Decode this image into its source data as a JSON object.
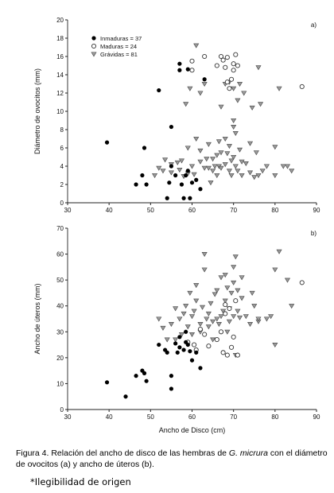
{
  "chart_data": [
    {
      "type": "scatter",
      "panel_label": "a)",
      "xlabel": "",
      "ylabel": "Diámetro de ovocitos (mm)",
      "xlim": [
        30,
        90
      ],
      "ylim": [
        0,
        20
      ],
      "xticks": [
        30,
        40,
        50,
        60,
        70,
        80,
        90
      ],
      "yticks": [
        0,
        2,
        4,
        6,
        8,
        10,
        12,
        14,
        16,
        18,
        20
      ],
      "legend_position": "top-left",
      "series": [
        {
          "name": "Inmaduras = 37",
          "marker": "filled-circle",
          "points": [
            [
              39.5,
              6.6
            ],
            [
              46.5,
              2.0
            ],
            [
              48,
              3.0
            ],
            [
              48.5,
              6.0
            ],
            [
              49,
              2.0
            ],
            [
              52,
              12.3
            ],
            [
              54,
              0.5
            ],
            [
              54.5,
              2.2
            ],
            [
              55,
              8.3
            ],
            [
              55,
              4.0
            ],
            [
              56,
              3.0
            ],
            [
              57,
              15.2
            ],
            [
              57,
              14.5
            ],
            [
              57.5,
              2.0
            ],
            [
              58,
              0.5
            ],
            [
              58.5,
              3.0
            ],
            [
              59,
              3.5
            ],
            [
              59,
              14.6
            ],
            [
              59.5,
              0.5
            ],
            [
              60,
              2.2
            ],
            [
              61,
              2.5
            ],
            [
              62,
              1.5
            ],
            [
              63,
              13.5
            ]
          ]
        },
        {
          "name": "Maduras = 24",
          "marker": "open-circle",
          "points": [
            [
              60,
              14.5
            ],
            [
              60,
              15.5
            ],
            [
              63,
              16.0
            ],
            [
              66,
              15.0
            ],
            [
              67,
              16.0
            ],
            [
              67.5,
              15.6
            ],
            [
              68,
              14.8
            ],
            [
              68.5,
              13.2
            ],
            [
              68.5,
              15.9
            ],
            [
              69,
              12.5
            ],
            [
              69.5,
              13.5
            ],
            [
              70,
              14.5
            ],
            [
              70,
              15.2
            ],
            [
              70.5,
              16.2
            ],
            [
              71,
              15.0
            ],
            [
              86.5,
              12.7
            ]
          ]
        },
        {
          "name": "Grávidas = 81",
          "marker": "triangle-down",
          "points": [
            [
              51,
              3.0
            ],
            [
              52,
              3.8
            ],
            [
              53,
              3.5
            ],
            [
              53.5,
              4.7
            ],
            [
              55,
              4.2
            ],
            [
              55,
              3.3
            ],
            [
              56.5,
              4.4
            ],
            [
              57,
              3.6
            ],
            [
              57.5,
              4.6
            ],
            [
              58,
              2.9
            ],
            [
              58.5,
              10.8
            ],
            [
              59,
              6.0
            ],
            [
              59,
              3.2
            ],
            [
              59.5,
              12.5
            ],
            [
              60,
              4.0
            ],
            [
              60.5,
              3.1
            ],
            [
              61,
              17.2
            ],
            [
              61,
              7.0
            ],
            [
              62,
              4.5
            ],
            [
              62,
              5.7
            ],
            [
              62,
              12.0
            ],
            [
              63,
              3.8
            ],
            [
              63,
              13.0
            ],
            [
              63.5,
              4.8
            ],
            [
              64,
              3.8
            ],
            [
              64,
              6.4
            ],
            [
              64.5,
              2.2
            ],
            [
              65,
              3.5
            ],
            [
              65,
              4.8
            ],
            [
              65.5,
              4.0
            ],
            [
              66,
              3.0
            ],
            [
              66,
              5.2
            ],
            [
              66.5,
              6.7
            ],
            [
              66.5,
              4.0
            ],
            [
              67,
              5.5
            ],
            [
              67,
              3.8
            ],
            [
              67,
              10.5
            ],
            [
              68,
              4.2
            ],
            [
              68,
              7.0
            ],
            [
              68,
              13.0
            ],
            [
              68.5,
              5.4
            ],
            [
              69,
              3.5
            ],
            [
              69,
              6.2
            ],
            [
              69,
              13.2
            ],
            [
              69.5,
              3.0
            ],
            [
              69.5,
              4.6
            ],
            [
              70,
              8.3
            ],
            [
              70,
              5.0
            ],
            [
              70,
              9.0
            ],
            [
              70,
              12.5
            ],
            [
              70.5,
              4.0
            ],
            [
              70.5,
              7.6
            ],
            [
              71,
              3.5
            ],
            [
              71,
              11.2
            ],
            [
              71.5,
              5.8
            ],
            [
              71.5,
              13.0
            ],
            [
              72,
              4.5
            ],
            [
              72,
              3.0
            ],
            [
              72.5,
              12.0
            ],
            [
              73,
              4.3
            ],
            [
              74,
              6.5
            ],
            [
              74,
              3.3
            ],
            [
              74.5,
              10.4
            ],
            [
              75,
              2.8
            ],
            [
              75.5,
              5.5
            ],
            [
              76,
              3.0
            ],
            [
              76,
              14.8
            ],
            [
              76.5,
              10.8
            ],
            [
              77,
              3.5
            ],
            [
              78,
              4.0
            ],
            [
              80,
              6.1
            ],
            [
              80,
              3.0
            ],
            [
              81,
              12.5
            ],
            [
              82,
              4.0
            ],
            [
              83,
              4.0
            ],
            [
              84,
              3.5
            ]
          ]
        }
      ]
    },
    {
      "type": "scatter",
      "panel_label": "b)",
      "xlabel": "Ancho de Disco (cm)",
      "ylabel": "Ancho de úteros (mm)",
      "xlim": [
        30,
        90
      ],
      "ylim": [
        0,
        70
      ],
      "xticks": [
        30,
        40,
        50,
        60,
        70,
        80,
        90
      ],
      "yticks": [
        0,
        10,
        20,
        30,
        40,
        50,
        60,
        70
      ],
      "series": [
        {
          "name": "Inmaduras = 37",
          "marker": "filled-circle",
          "points": [
            [
              39.5,
              10.5
            ],
            [
              44,
              5.0
            ],
            [
              46.5,
              13.0
            ],
            [
              48,
              15.0
            ],
            [
              48.5,
              14.0
            ],
            [
              49,
              11.0
            ],
            [
              52,
              25.0
            ],
            [
              53.5,
              23.0
            ],
            [
              54,
              22.0
            ],
            [
              55,
              13.0
            ],
            [
              55,
              8.0
            ],
            [
              56,
              25.5
            ],
            [
              56.5,
              22.0
            ],
            [
              57,
              24.0
            ],
            [
              57,
              28.0
            ],
            [
              58,
              23.0
            ],
            [
              58.5,
              26.0
            ],
            [
              58.5,
              30.0
            ],
            [
              59,
              25.0
            ],
            [
              59.5,
              22.5
            ],
            [
              60,
              19.0
            ],
            [
              61,
              22.0
            ],
            [
              62,
              16.0
            ]
          ]
        },
        {
          "name": "Maduras = 24",
          "marker": "open-circle",
          "points": [
            [
              59,
              26.0
            ],
            [
              60.5,
              25.0
            ],
            [
              61,
              23.0
            ],
            [
              62,
              31.0
            ],
            [
              63,
              29.0
            ],
            [
              64,
              24.5
            ],
            [
              66,
              27.0
            ],
            [
              67,
              30.0
            ],
            [
              67.5,
              22.0
            ],
            [
              68,
              37.0
            ],
            [
              68,
              40.5
            ],
            [
              68.5,
              21.0
            ],
            [
              69,
              39.0
            ],
            [
              69.5,
              24.0
            ],
            [
              70,
              28.0
            ],
            [
              70.5,
              42.0
            ],
            [
              71,
              21.0
            ],
            [
              86.5,
              49.0
            ]
          ]
        },
        {
          "name": "Grávidas = 81",
          "marker": "triangle-down",
          "points": [
            [
              52,
              35.0
            ],
            [
              53,
              31.5
            ],
            [
              54,
              27.0
            ],
            [
              55,
              33.0
            ],
            [
              56,
              27.0
            ],
            [
              56,
              39.0
            ],
            [
              57,
              35.0
            ],
            [
              57.5,
              29.0
            ],
            [
              58,
              37.0
            ],
            [
              58.5,
              40.0
            ],
            [
              59,
              32.0
            ],
            [
              59.5,
              45.0
            ],
            [
              60,
              29.0
            ],
            [
              60,
              36.0
            ],
            [
              60.5,
              38.0
            ],
            [
              61,
              42.0
            ],
            [
              61,
              48.0
            ],
            [
              62,
              30.0
            ],
            [
              62,
              33.0
            ],
            [
              62.5,
              39.5
            ],
            [
              63,
              60.0
            ],
            [
              63,
              54.0
            ],
            [
              63.5,
              35.0
            ],
            [
              64,
              32.0
            ],
            [
              64,
              37.0
            ],
            [
              64.5,
              41.0
            ],
            [
              65,
              27.0
            ],
            [
              65,
              34.0
            ],
            [
              65.5,
              44.5
            ],
            [
              66,
              35.0
            ],
            [
              66,
              46.0
            ],
            [
              66.5,
              33.0
            ],
            [
              67,
              36.0
            ],
            [
              67,
              51.0
            ],
            [
              67.5,
              38.0
            ],
            [
              68,
              42.0
            ],
            [
              68,
              52.0
            ],
            [
              68.5,
              30.0
            ],
            [
              68.5,
              47.0
            ],
            [
              69,
              34.0
            ],
            [
              69,
              39.0
            ],
            [
              69.5,
              45.0
            ],
            [
              70,
              49.0
            ],
            [
              70,
              55.0
            ],
            [
              70,
              36.0
            ],
            [
              70.5,
              59.0
            ],
            [
              70.5,
              21.0
            ],
            [
              71,
              38.0
            ],
            [
              71,
              46.0
            ],
            [
              71.5,
              35.5
            ],
            [
              72,
              43.0
            ],
            [
              72,
              51.0
            ],
            [
              73,
              36.0
            ],
            [
              74,
              33.0
            ],
            [
              74.5,
              45.0
            ],
            [
              75,
              40.0
            ],
            [
              76,
              34.0
            ],
            [
              76,
              35.0
            ],
            [
              78,
              35.0
            ],
            [
              79,
              36.0
            ],
            [
              80,
              25.0
            ],
            [
              80,
              54.0
            ],
            [
              81,
              61.0
            ],
            [
              83,
              50.0
            ],
            [
              84,
              40.0
            ]
          ]
        }
      ]
    }
  ],
  "caption": {
    "prefix": "Figura 4. Relación del ancho de disco de las hembras de ",
    "species": "G. micrura",
    "suffix": " con el diámetro de ovocitos (a) y ancho de úteros (b)."
  },
  "note": "*Ilegibilidad de origen"
}
